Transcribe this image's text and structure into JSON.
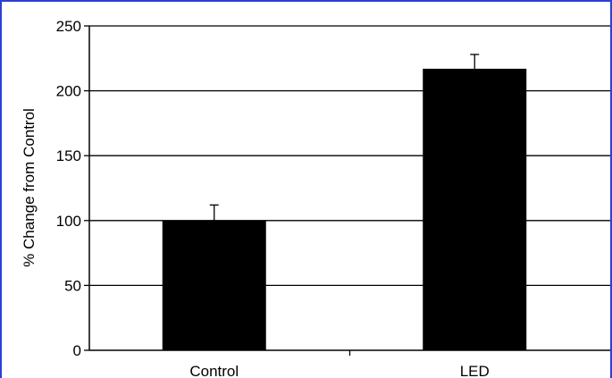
{
  "colors": {
    "frame_border": "#2a3fd8",
    "bar_fill": "#000000",
    "gridline": "#000000",
    "background": "#ffffff"
  },
  "chart_data": {
    "type": "bar",
    "categories": [
      "Control",
      "LED"
    ],
    "values": [
      100,
      217
    ],
    "error_bars": [
      12,
      11
    ],
    "ylabel": "% Change from Control",
    "ylim": [
      0,
      250
    ],
    "yticks": [
      0,
      50,
      100,
      150,
      200,
      250
    ],
    "grid": true
  }
}
